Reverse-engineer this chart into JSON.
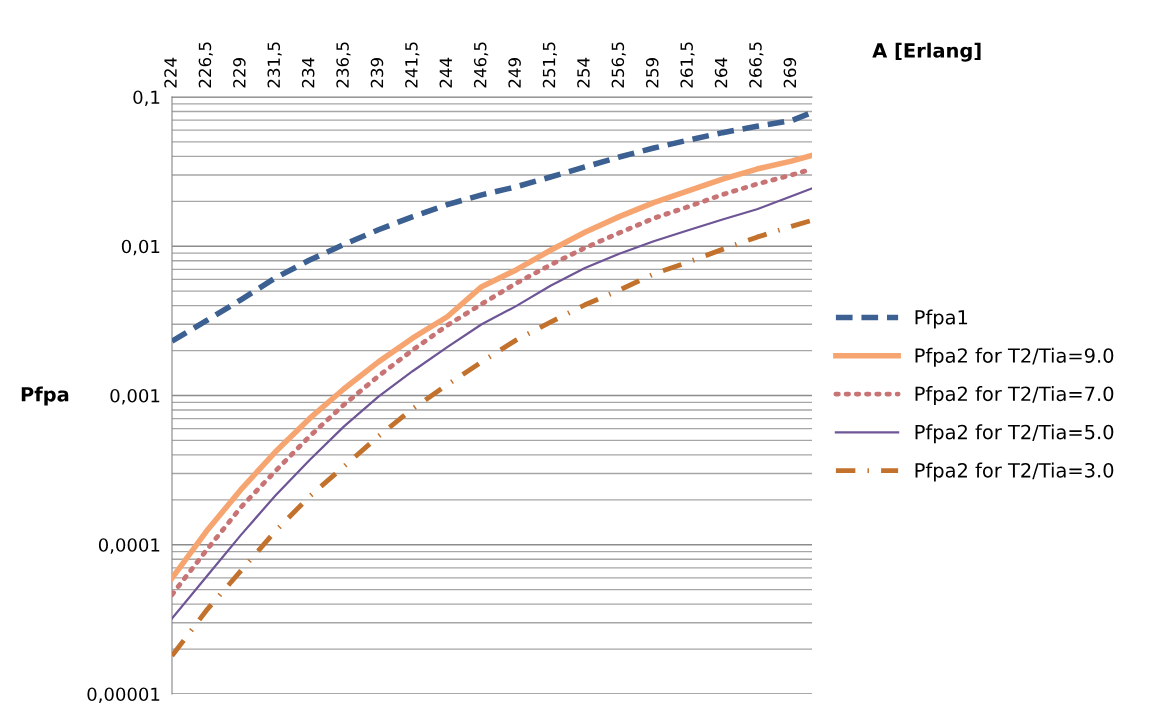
{
  "chart_data": {
    "type": "line",
    "xlabel": "A [Erlang]",
    "ylabel": "Pfpa",
    "log": "y",
    "grid": "y",
    "legend": "right",
    "x": [
      224,
      226.5,
      229,
      231.5,
      234,
      236.5,
      239,
      241.5,
      244,
      246.5,
      249,
      251.5,
      254,
      256.5,
      259,
      261.5,
      264,
      266.5,
      269,
      270.5
    ],
    "xlim": [
      224,
      270.5
    ],
    "xticks": [
      224,
      {
        "value": 226.5,
        "label": "226,5"
      },
      229,
      {
        "value": 231.5,
        "label": "231,5"
      },
      234,
      {
        "value": 236.5,
        "label": "236,5"
      },
      239,
      {
        "value": 241.5,
        "label": "241,5"
      },
      244,
      {
        "value": 246.5,
        "label": "246,5"
      },
      249,
      {
        "value": 251.5,
        "label": "251,5"
      },
      254,
      {
        "value": 256.5,
        "label": "256,5"
      },
      259,
      {
        "value": 261.5,
        "label": "261,5"
      },
      264,
      {
        "value": 266.5,
        "label": "266,5"
      },
      269
    ],
    "ylim": [
      1e-05,
      0.1
    ],
    "yticks": [
      {
        "value": 1e-05,
        "label": "0,00001"
      },
      {
        "value": 0.0001,
        "label": "0,0001"
      },
      {
        "value": 0.001,
        "label": "0,001"
      },
      {
        "value": 0.01,
        "label": "0,01"
      },
      {
        "value": 0.1,
        "label": "0,1"
      }
    ],
    "series": [
      {
        "name": "Pfpa1",
        "color": "#3b6091",
        "line_style": "dashed",
        "values": [
          0.00231,
          0.00317,
          0.00438,
          0.00613,
          0.00808,
          0.0103,
          0.0129,
          0.0158,
          0.019,
          0.0221,
          0.025,
          0.0291,
          0.034,
          0.0396,
          0.0455,
          0.0514,
          0.0577,
          0.0636,
          0.0694,
          0.0788
        ]
      },
      {
        "name": "Pfpa2 for T2/Tia=9.0",
        "color": "#f6a571",
        "line_style": "solid",
        "values": [
          5.98e-05,
          0.000123,
          0.000234,
          0.000418,
          0.000702,
          0.00111,
          0.00168,
          0.00243,
          0.00337,
          0.00536,
          0.00694,
          0.0094,
          0.0124,
          0.0158,
          0.0196,
          0.0235,
          0.0282,
          0.0329,
          0.0372,
          0.0407
        ]
      },
      {
        "name": "Pfpa2 for T2/Tia=7.0",
        "color": "#c97474",
        "line_style": "dotted",
        "values": [
          4.63e-05,
          9.18e-05,
          0.000178,
          0.000311,
          0.000533,
          0.000869,
          0.00135,
          0.00202,
          0.00295,
          0.0041,
          0.00564,
          0.0075,
          0.00975,
          0.0123,
          0.0154,
          0.0184,
          0.0222,
          0.0261,
          0.03,
          0.0329
        ]
      },
      {
        "name": "Pfpa2 for T2/Tia=5.0",
        "color": "#6e5596",
        "line_style": "solid",
        "values": [
          3.21e-05,
          6.1e-05,
          0.000116,
          0.000213,
          0.00037,
          0.000621,
          0.000982,
          0.00146,
          0.00211,
          0.003,
          0.00397,
          0.00543,
          0.00715,
          0.00891,
          0.0108,
          0.0128,
          0.0151,
          0.0177,
          0.0216,
          0.0244
        ]
      },
      {
        "name": "Pfpa2 for T2/Tia=3.0",
        "color": "#c2722c",
        "line_style": "dashdot",
        "values": [
          1.8e-05,
          3.63e-05,
          6.68e-05,
          0.000123,
          0.000211,
          0.000335,
          0.000533,
          0.000817,
          0.00118,
          0.00168,
          0.00235,
          0.0031,
          0.00405,
          0.00508,
          0.00652,
          0.00783,
          0.00953,
          0.0115,
          0.0136,
          0.0149
        ]
      }
    ]
  }
}
